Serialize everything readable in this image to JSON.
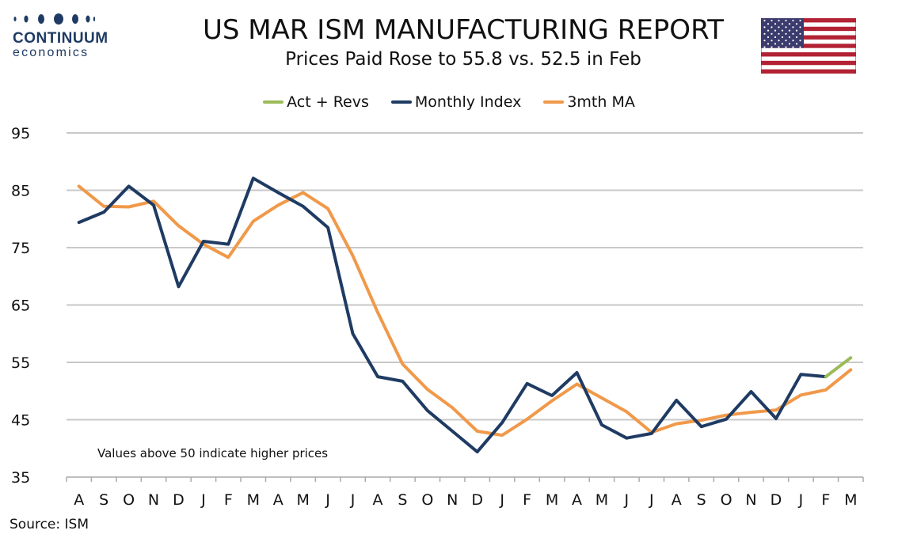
{
  "logo": {
    "name": "CONTINUUM",
    "sub": "economics"
  },
  "flag_icon": "us-flag-icon",
  "source": "Source: ISM",
  "colors": {
    "act_revs": "#9bbb59",
    "monthly": "#1f3b63",
    "ma": "#f0994a",
    "grid": "#c8c8c8",
    "logo": "#1f3b63"
  },
  "chart_data": {
    "type": "line",
    "title": "US MAR ISM MANUFACTURING REPORT",
    "subtitle": "Prices Paid Rose to 55.8 vs. 52.5 in Feb",
    "annotation": "Values above 50 indicate higher prices",
    "categories": [
      "A",
      "S",
      "O",
      "N",
      "D",
      "J",
      "F",
      "M",
      "A",
      "M",
      "J",
      "J",
      "A",
      "S",
      "O",
      "N",
      "D",
      "J",
      "F",
      "M",
      "A",
      "M",
      "J",
      "J",
      "A",
      "S",
      "O",
      "N",
      "D",
      "J",
      "F",
      "M"
    ],
    "yticks": [
      35,
      45,
      55,
      65,
      75,
      85,
      95
    ],
    "ylim": [
      35,
      95
    ],
    "grid": true,
    "legend_position": "top",
    "series": [
      {
        "name": "Act + Revs",
        "color": "#9bbb59",
        "values": [
          null,
          null,
          null,
          null,
          null,
          null,
          null,
          null,
          null,
          null,
          null,
          null,
          null,
          null,
          null,
          null,
          null,
          null,
          null,
          null,
          null,
          null,
          null,
          null,
          null,
          null,
          null,
          null,
          null,
          null,
          52.5,
          55.8
        ]
      },
      {
        "name": "Monthly Index",
        "color": "#1f3b63",
        "values": [
          79.4,
          81.2,
          85.7,
          82.4,
          68.2,
          76.1,
          75.6,
          87.1,
          84.6,
          82.2,
          78.5,
          60.0,
          52.5,
          51.7,
          46.6,
          43.0,
          39.4,
          44.5,
          51.3,
          49.2,
          53.2,
          44.1,
          41.8,
          42.6,
          48.4,
          43.8,
          45.1,
          49.9,
          45.2,
          52.9,
          52.5,
          null
        ]
      },
      {
        "name": "3mth MA",
        "color": "#f0994a",
        "values": [
          85.7,
          82.2,
          82.1,
          83.1,
          78.8,
          75.6,
          73.3,
          79.6,
          82.4,
          84.6,
          81.8,
          73.6,
          63.7,
          54.7,
          50.3,
          47.1,
          43.0,
          42.3,
          45.1,
          48.3,
          51.2,
          48.8,
          46.4,
          42.8,
          44.3,
          44.9,
          45.8,
          46.3,
          46.7,
          49.3,
          50.2,
          53.7
        ]
      }
    ]
  }
}
